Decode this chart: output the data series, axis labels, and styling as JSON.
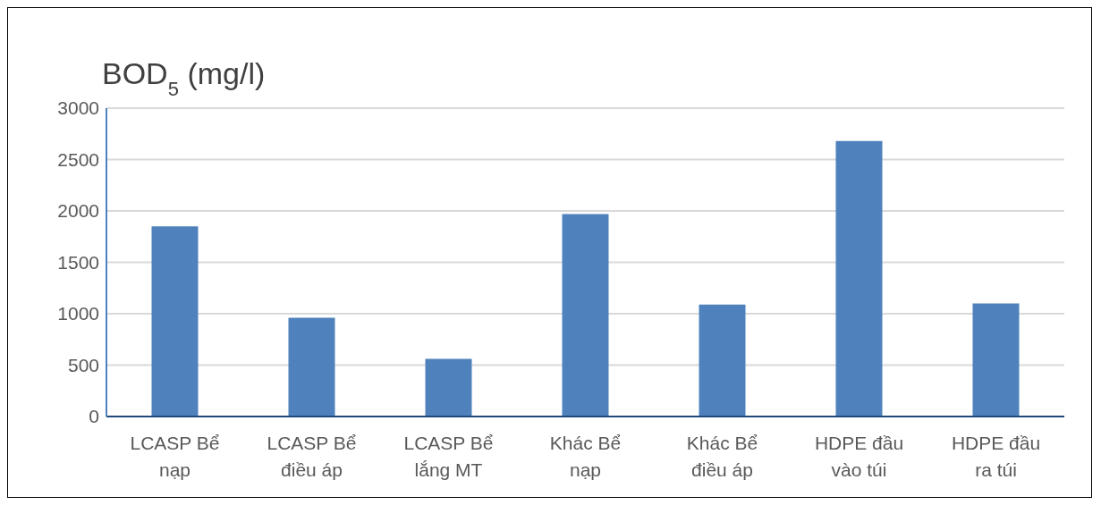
{
  "chart_data": {
    "type": "bar",
    "ylabel": "BOD$_{5}$ (mg/l)",
    "categories": [
      "LCASP Bể nạp",
      "LCASP Bể điều áp",
      "LCASP Bể lắng MT",
      "Khác Bể nạp",
      "Khác Bể điều áp",
      "HDPE đầu vào túi",
      "HDPE đầu ra túi"
    ],
    "values": [
      1850,
      960,
      560,
      1970,
      1090,
      2680,
      1100
    ],
    "color": "#4f81bd",
    "ylim": [
      0,
      3000
    ],
    "yticks": [
      0,
      500,
      1000,
      1500,
      2000,
      2500,
      3000
    ],
    "grid": "y"
  }
}
